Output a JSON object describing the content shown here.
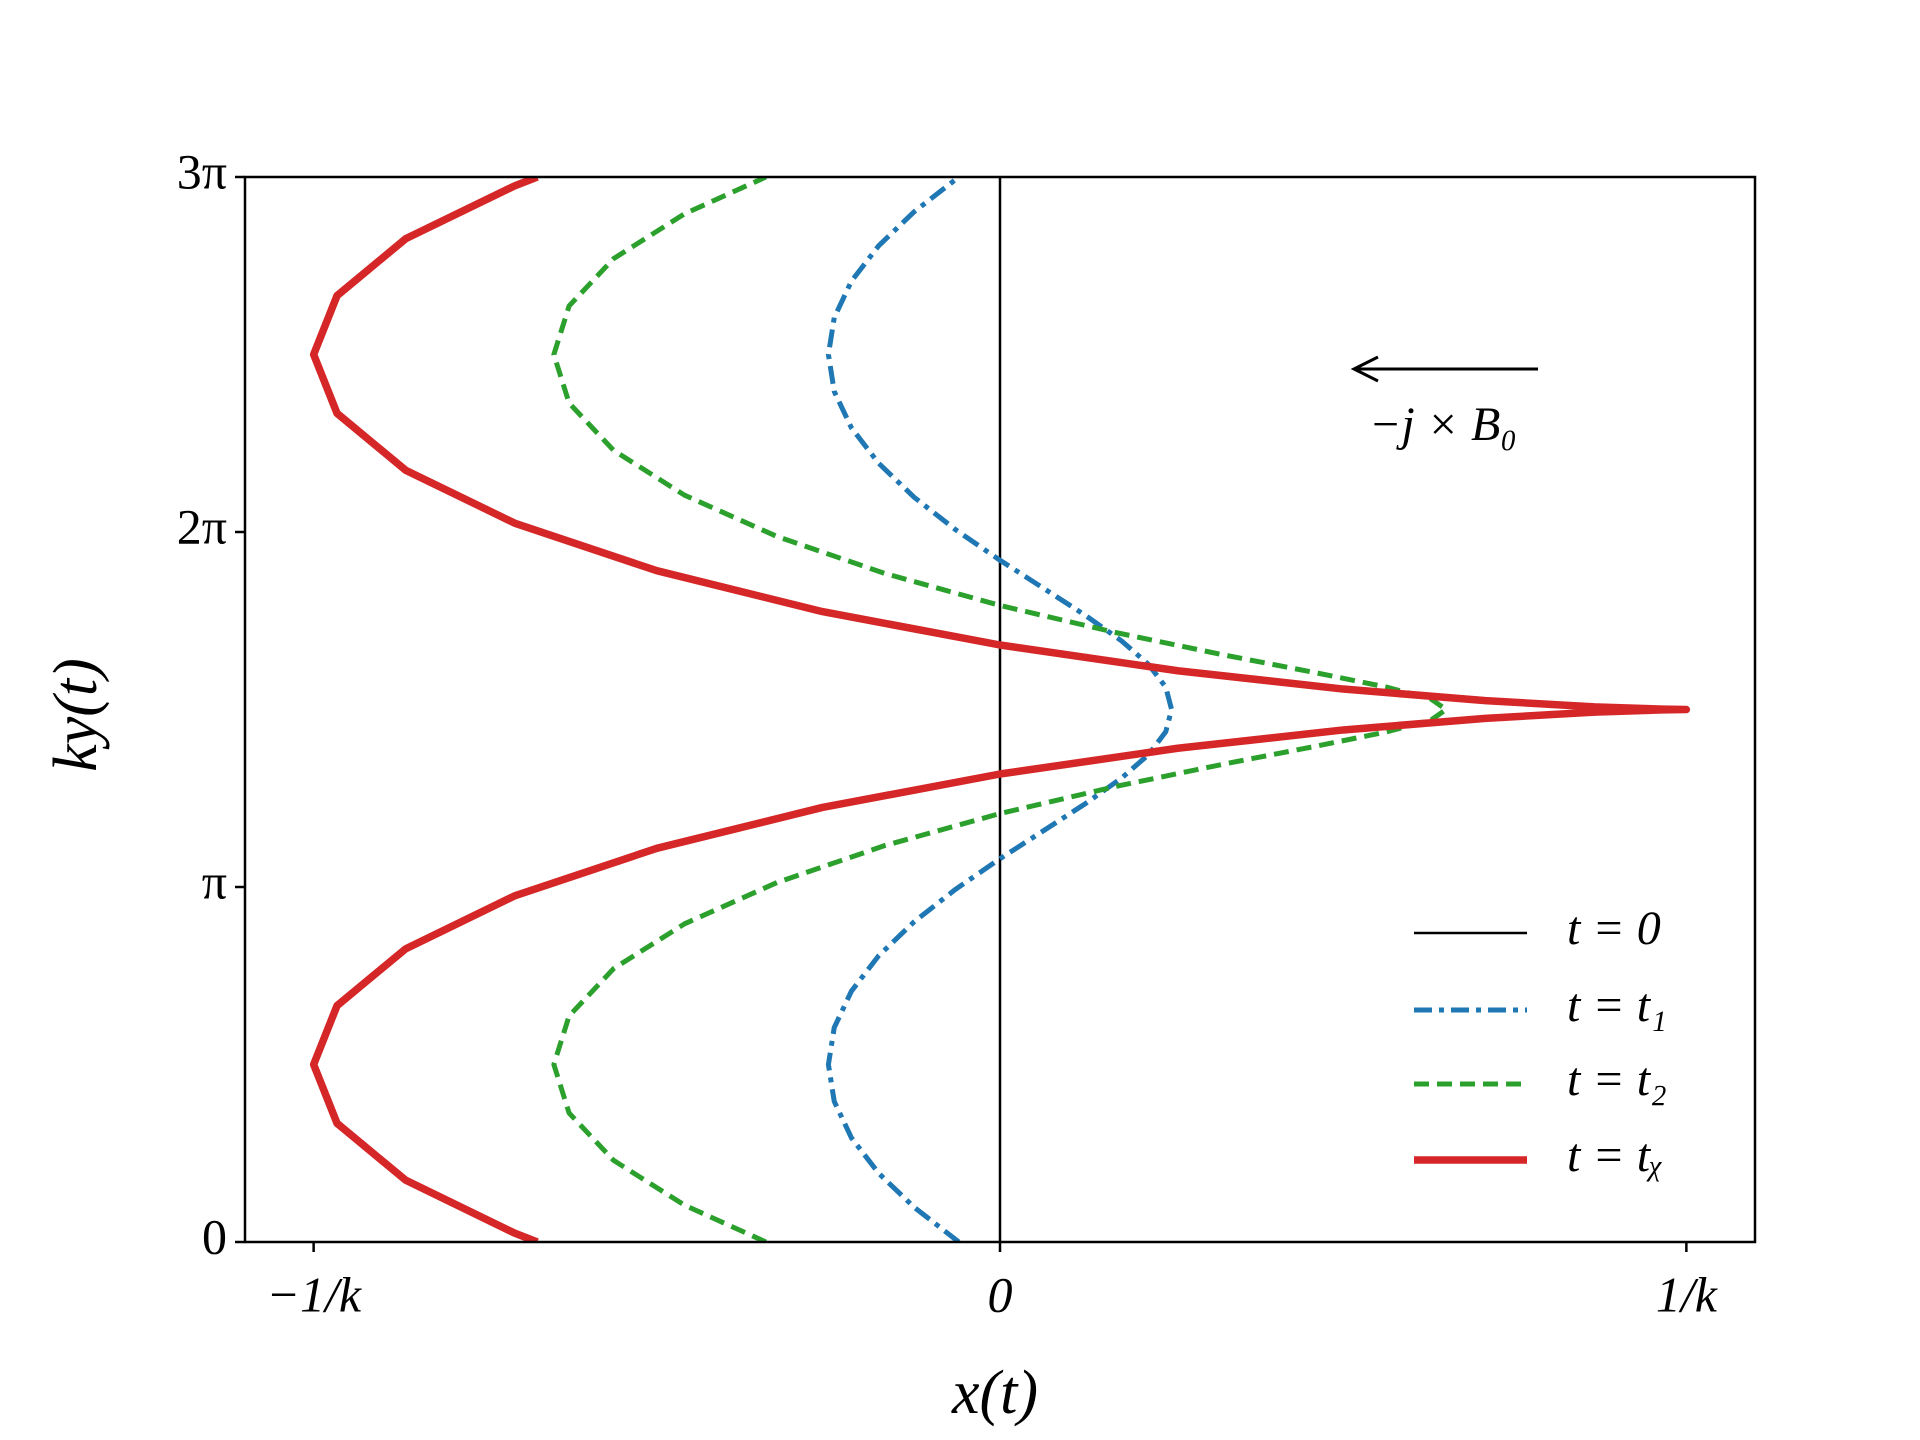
{
  "chart_data": {
    "type": "line",
    "xlabel": "x(t)",
    "ylabel": "ky(t)",
    "annotation": "−j × B₀",
    "xlim": [
      -1.1,
      1.1
    ],
    "xticks": [
      {
        "value": -1,
        "label": "−1/k"
      },
      0,
      {
        "value": 1,
        "label": "1/k"
      }
    ],
    "ylim": [
      0,
      3
    ],
    "yticks": [
      0,
      {
        "value": 1,
        "label": "π"
      },
      {
        "value": 2,
        "label": "2π"
      },
      {
        "value": 3,
        "label": "3π"
      }
    ],
    "legend": "lower right",
    "series": [
      {
        "name": "t = 0",
        "color": "#000000",
        "linestyle": "solid",
        "x": [
          0,
          0
        ],
        "y": [
          0,
          3
        ]
      },
      {
        "name": "t = t₁",
        "color": "#1f77b4",
        "linestyle": "dashdot",
        "x": [
          -0.06,
          -0.125,
          -0.1768,
          -0.2165,
          -0.2415,
          -0.25,
          -0.2415,
          -0.2165,
          -0.1768,
          -0.125,
          -0.0647,
          0,
          0.0647,
          0.125,
          0.1768,
          0.2165,
          0.2415,
          0.25,
          0.2415,
          0.2165,
          0.1768,
          0.125,
          0.0647,
          0,
          -0.0647,
          -0.125,
          -0.1768,
          -0.2165,
          -0.2415,
          -0.25,
          -0.2415,
          -0.2165,
          -0.1768,
          -0.125,
          -0.06
        ],
        "y": [
          0,
          0.0978,
          0.1937,
          0.2935,
          0.3961,
          0.5,
          0.6039,
          0.7065,
          0.8063,
          0.9022,
          0.9936,
          1.0796,
          1.1602,
          1.2356,
          1.3063,
          1.3731,
          1.4373,
          1.5,
          1.5627,
          1.6269,
          1.6937,
          1.7644,
          1.8398,
          1.9204,
          2.0064,
          2.0978,
          2.1937,
          2.2935,
          2.3961,
          2.5,
          2.6039,
          2.7065,
          2.8063,
          2.9022,
          3
        ]
      },
      {
        "name": "t = t₂",
        "color": "#2ca02c",
        "linestyle": "dashed",
        "x": [
          -0.341,
          -0.4596,
          -0.5629,
          -0.6278,
          -0.65,
          -0.6278,
          -0.5629,
          -0.4596,
          -0.325,
          -0.1682,
          0,
          0.1682,
          0.325,
          0.4596,
          0.5629,
          0.6278,
          0.65,
          0.6278,
          0.5629,
          0.4596,
          0.325,
          0.1682,
          0,
          -0.1682,
          -0.325,
          -0.4596,
          -0.5629,
          -0.6278,
          -0.65,
          -0.6278,
          -0.5629,
          -0.4596,
          -0.341
        ],
        "y": [
          0,
          0.1037,
          0.2298,
          0.3632,
          0.5,
          0.6368,
          0.7702,
          0.8963,
          1.0125,
          1.1165,
          1.2069,
          1.2831,
          1.3459,
          1.3963,
          1.4368,
          1.4702,
          1.5,
          1.5298,
          1.5632,
          1.6037,
          1.6541,
          1.7169,
          1.7931,
          1.8835,
          1.9875,
          2.1037,
          2.2298,
          2.3632,
          2.5,
          2.6368,
          2.7702,
          2.8963,
          3
        ]
      },
      {
        "name": "t = tᵪ",
        "color": "#d62728",
        "linestyle": "solid",
        "x": [
          -0.674,
          -0.7071,
          -0.866,
          -0.9659,
          -1,
          -0.9659,
          -0.866,
          -0.7071,
          -0.5,
          -0.2588,
          0,
          0.2588,
          0.5,
          0.7071,
          0.866,
          0.9659,
          1,
          0.9659,
          0.866,
          0.7071,
          0.5,
          0.2588,
          0,
          -0.2588,
          -0.5,
          -0.7071,
          -0.866,
          -0.9659,
          -1,
          -0.9659,
          -0.866,
          -0.7071,
          -0.674
        ],
        "y": [
          0,
          0.0249,
          0.1742,
          0.3343,
          0.5,
          0.6657,
          0.8258,
          0.9751,
          1.109,
          1.2241,
          1.3183,
          1.3908,
          1.4424,
          1.4751,
          1.4925,
          1.4991,
          1.5,
          1.5009,
          1.5075,
          1.5249,
          1.5576,
          1.6092,
          1.6817,
          1.7758,
          1.891,
          2.0249,
          2.1741,
          2.3343,
          2.5,
          2.6657,
          2.8259,
          2.9751,
          3
        ]
      }
    ]
  }
}
